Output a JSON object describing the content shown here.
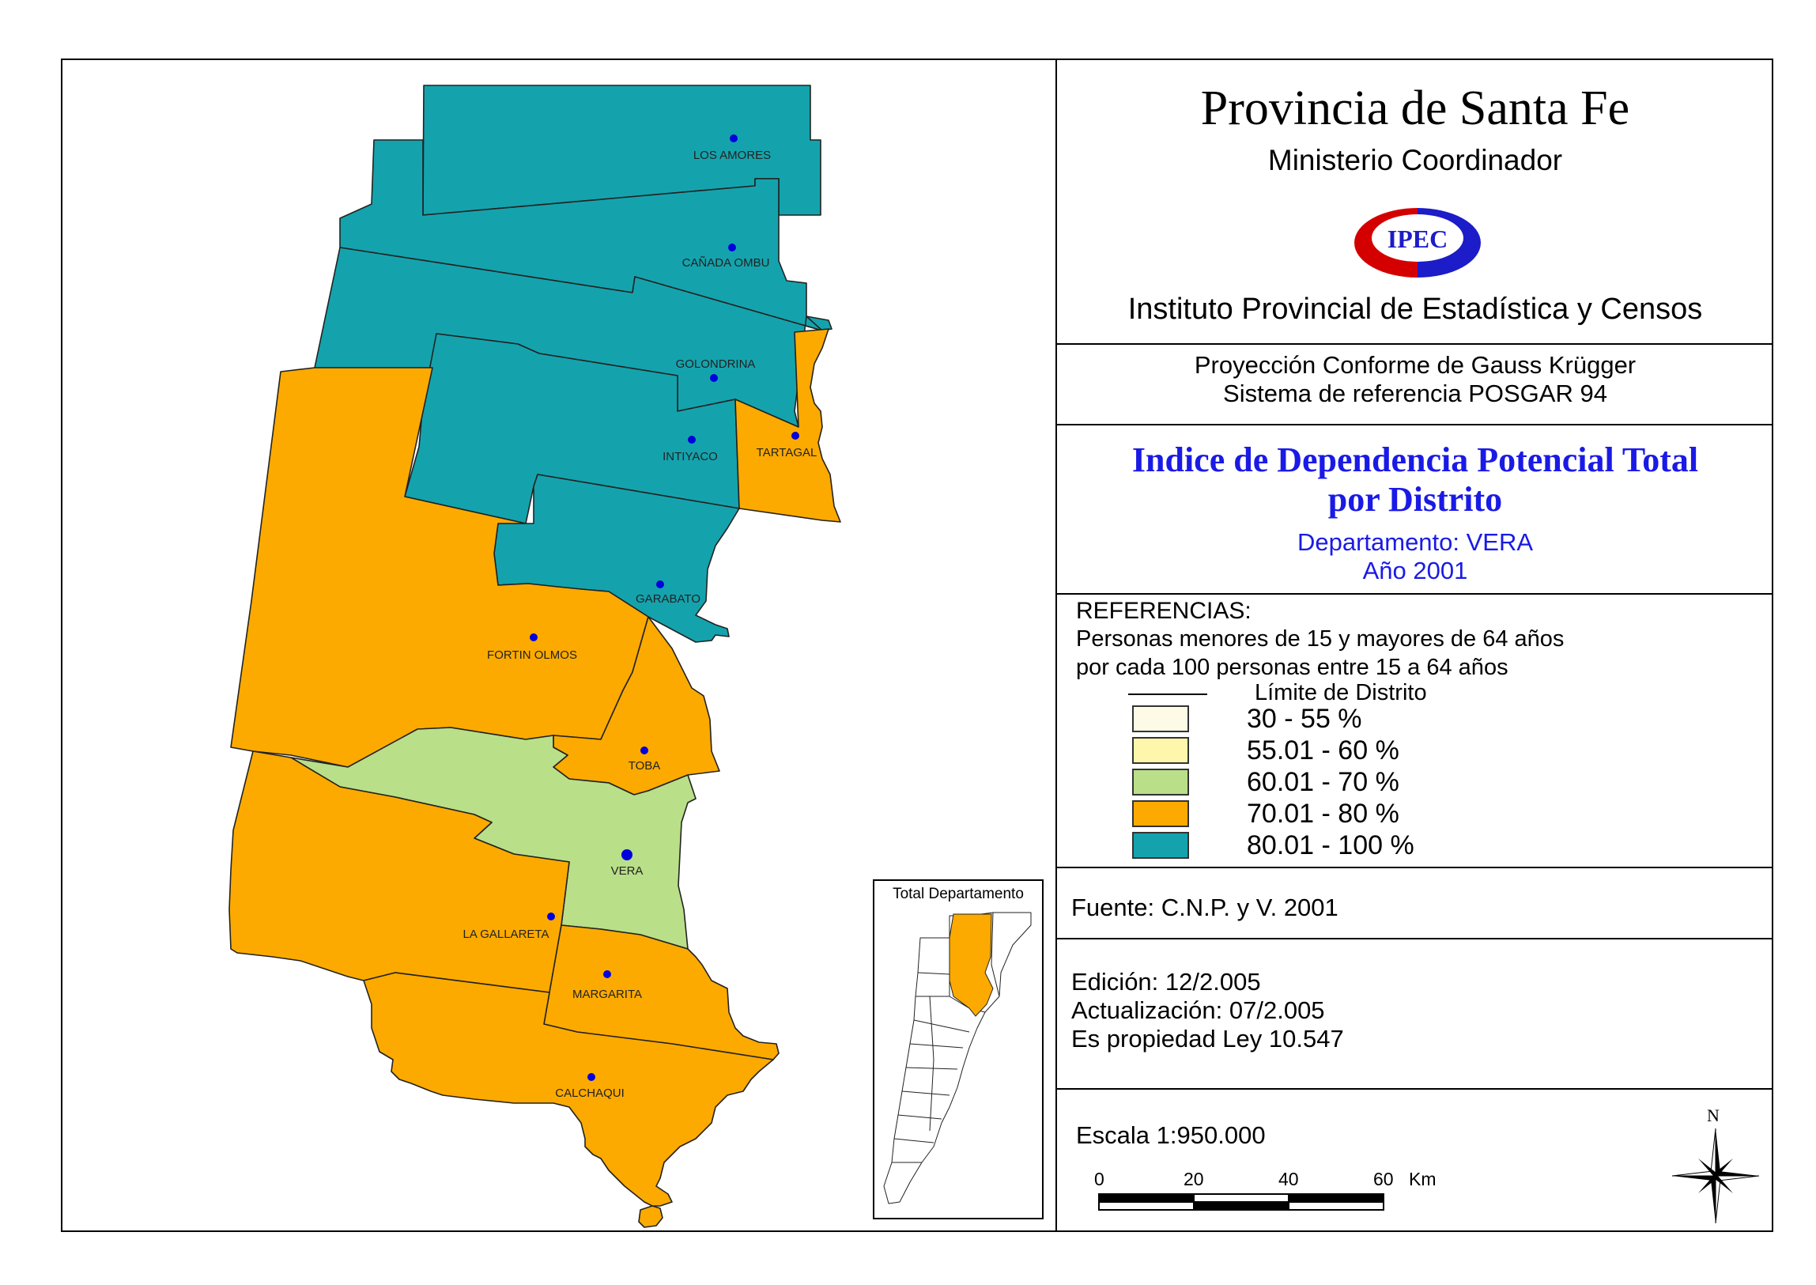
{
  "header": {
    "title": "Provincia de Santa Fe",
    "ministry": "Ministerio Coordinador",
    "logo_text": "IPEC",
    "institute": "Instituto Provincial de Estadística y Censos"
  },
  "projection": {
    "line1": "Proyección Conforme de Gauss Krügger",
    "line2": "Sistema de referencia POSGAR 94"
  },
  "map_title": {
    "line1": "Indice de Dependencia Potencial Total",
    "line2": "por Distrito",
    "department": "Departamento:  VERA",
    "year": "Año 2001"
  },
  "legend": {
    "heading": "REFERENCIAS:",
    "desc1": "Personas menores de 15 y mayores de 64 años",
    "desc2": "por cada 100 personas entre 15 a 64 años",
    "boundary_label": "Límite de Distrito",
    "classes": [
      {
        "label": "30 - 55 %",
        "color": "#fdfbe6"
      },
      {
        "label": "55.01 - 60 %",
        "color": "#fef6aa"
      },
      {
        "label": "60.01 - 70 %",
        "color": "#b9df88"
      },
      {
        "label": "70.01 - 80 %",
        "color": "#fcaa00"
      },
      {
        "label": "80.01 - 100 %",
        "color": "#14a3ad"
      }
    ]
  },
  "source": "Fuente:  C.N.P. y V. 2001",
  "edition": {
    "edicion": "Edición:  12/2.005",
    "actualizacion": "Actualización:  07/2.005",
    "propiedad": "Es propiedad Ley 10.547"
  },
  "scale": {
    "label": "Escala 1:950.000",
    "ticks": [
      "0",
      "20",
      "40",
      "60"
    ],
    "unit": "Km"
  },
  "north": "N",
  "inset": {
    "title": "Total Departamento"
  },
  "districts": [
    {
      "name": "LOS AMORES"
    },
    {
      "name": "CAÑADA OMBU"
    },
    {
      "name": "GOLONDRINA"
    },
    {
      "name": "INTIYACO"
    },
    {
      "name": "TARTAGAL"
    },
    {
      "name": "GARABATO"
    },
    {
      "name": "FORTIN OLMOS"
    },
    {
      "name": "TOBA"
    },
    {
      "name": "VERA"
    },
    {
      "name": "LA GALLARETA"
    },
    {
      "name": "MARGARITA"
    },
    {
      "name": "CALCHAQUI"
    }
  ]
}
